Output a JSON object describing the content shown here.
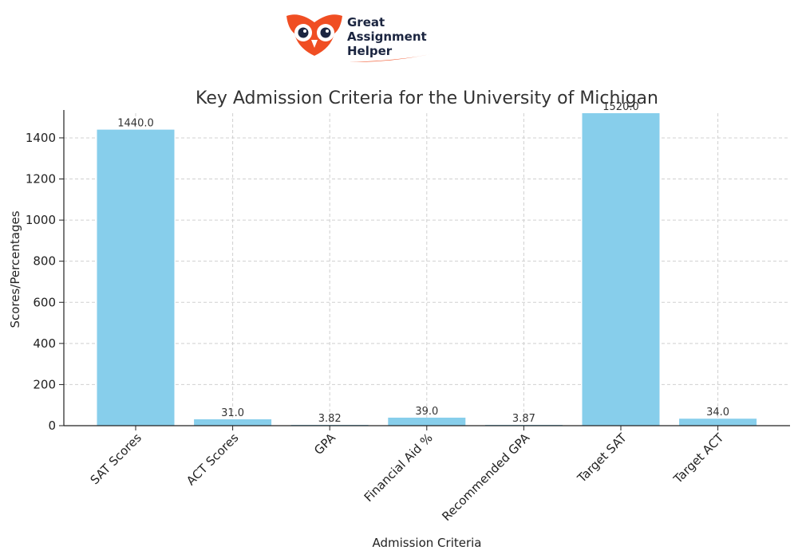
{
  "logo": {
    "line1": "Great",
    "line2": "Assignment",
    "line3": "Helper",
    "icon": "owl-logo-icon",
    "brand_color": "#f04e23",
    "text_color": "#1b2540"
  },
  "chart_data": {
    "type": "bar",
    "title": "Key Admission Criteria for the University of Michigan",
    "xlabel": "Admission Criteria",
    "ylabel": "Scores/Percentages",
    "categories": [
      "SAT Scores",
      "ACT Scores",
      "GPA",
      "Financial Aid %",
      "Recommended GPA",
      "Target SAT",
      "Target ACT"
    ],
    "values": [
      1440.0,
      31.0,
      3.82,
      39.0,
      3.87,
      1520.0,
      34.0
    ],
    "data_labels": [
      "1440.0",
      "31.0",
      "3.82",
      "39.0",
      "3.87",
      "1520.0",
      "34.0"
    ],
    "ylim": [
      0,
      1520
    ],
    "yticks": [
      0,
      200,
      400,
      600,
      800,
      1000,
      1200,
      1400
    ],
    "grid": true,
    "bar_color": "#87ceeb",
    "grid_color": "#d0d0d0"
  }
}
